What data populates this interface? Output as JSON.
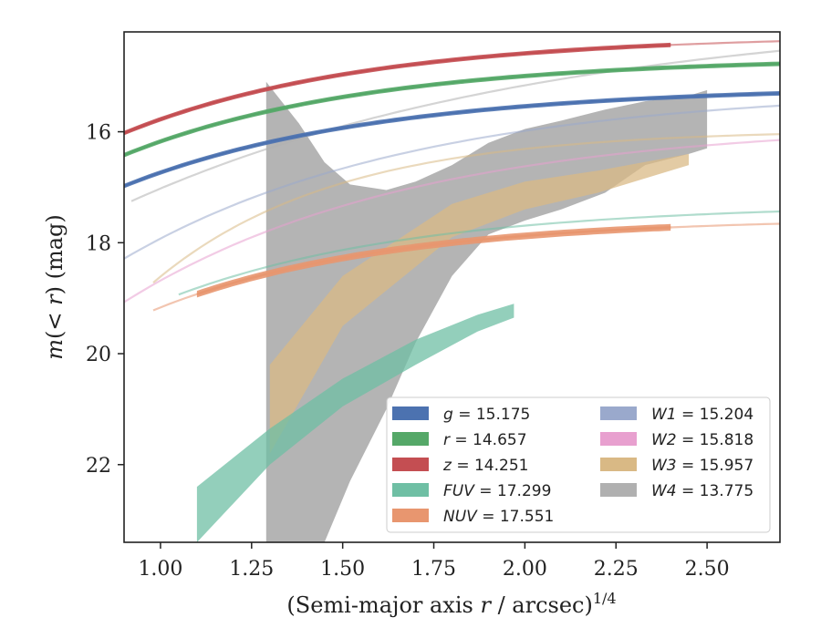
{
  "chart_data": {
    "type": "line",
    "xlabel": "(Semi-major axis r / arcsec)^1/4",
    "ylabel": "m(< r) (mag)",
    "xlim": [
      0.9,
      2.7
    ],
    "ylim": [
      23.4,
      14.2
    ],
    "y_inverted": true,
    "grid": false,
    "legend_position": "lower-right",
    "x_ticks": [
      "1.00",
      "1.25",
      "1.50",
      "1.75",
      "2.00",
      "2.25",
      "2.50"
    ],
    "x_tick_values": [
      1.0,
      1.25,
      1.5,
      1.75,
      2.0,
      2.25,
      2.5
    ],
    "y_ticks": [
      "16",
      "18",
      "20",
      "22"
    ],
    "y_tick_values": [
      16,
      18,
      20,
      22
    ],
    "series": [
      {
        "name": "g",
        "label": "g = 15.175",
        "color": "#4c72b0",
        "total": 15.175,
        "a": 6.65,
        "b": 1.45,
        "band": 0.04,
        "dmin": 0.9,
        "dmax": 2.7,
        "fit_min": 0.9,
        "fit_max": 2.7
      },
      {
        "name": "r",
        "label": "r = 14.657",
        "color": "#55a868",
        "total": 14.657,
        "a": 6.8,
        "b": 1.5,
        "band": 0.04,
        "dmin": 0.9,
        "dmax": 2.7,
        "fit_min": 0.9,
        "fit_max": 2.7
      },
      {
        "name": "z",
        "label": "z = 14.251",
        "color": "#c44e52",
        "total": 14.251,
        "a": 6.9,
        "b": 1.51,
        "band": 0.04,
        "dmin": 0.9,
        "dmax": 2.4,
        "fit_min": 0.9,
        "fit_max": 2.7
      },
      {
        "name": "FUV",
        "label": "FUV = 17.299",
        "color": "#6fbfa4",
        "total": 17.299,
        "a": 7.9,
        "b": 1.5,
        "band_x": [
          1.1,
          1.3,
          1.5,
          1.7,
          1.87,
          1.97
        ],
        "band_lo": [
          22.4,
          21.35,
          20.45,
          19.75,
          19.3,
          19.1
        ],
        "band_hi": [
          23.4,
          22.0,
          20.95,
          20.2,
          19.6,
          19.35
        ],
        "dmin": 1.1,
        "dmax": 1.97,
        "fit_min": 1.05,
        "fit_max": 2.7
      },
      {
        "name": "NUV",
        "label": "NUV = 17.551",
        "color": "#e8966f",
        "total": 17.551,
        "a": 8.0,
        "b": 1.6,
        "band": 0.06,
        "dmin": 1.1,
        "dmax": 2.4,
        "fit_min": 0.98,
        "fit_max": 2.7
      },
      {
        "name": "W1",
        "label": "W1 = 15.204",
        "color": "#9aa9cc",
        "total": 15.204,
        "a": 9.5,
        "b": 1.25,
        "dmin": 0.9,
        "dmax": 0.9,
        "fit_min": 0.9,
        "fit_max": 2.7
      },
      {
        "name": "W2",
        "label": "W2 = 15.818",
        "color": "#e8a0cf",
        "total": 15.818,
        "a": 10.2,
        "b": 1.27,
        "dmin": 0.9,
        "dmax": 0.9,
        "fit_min": 0.9,
        "fit_max": 2.7
      },
      {
        "name": "W3",
        "label": "W3 = 15.957",
        "color": "#d9b985",
        "total": 15.957,
        "a": 20.0,
        "b": 2.02,
        "band_x": [
          1.3,
          1.5,
          1.8,
          2.0,
          2.2,
          2.45
        ],
        "band_lo": [
          20.2,
          18.6,
          17.3,
          16.9,
          16.7,
          16.4
        ],
        "band_hi": [
          21.8,
          19.5,
          17.9,
          17.4,
          17.1,
          16.6
        ],
        "dmin": 1.3,
        "dmax": 2.45,
        "fit_min": 0.98,
        "fit_max": 2.7
      },
      {
        "name": "W4",
        "label": "W4 = 13.775",
        "color": "#b0b0b0",
        "total": 13.775,
        "a": 7.6,
        "b": 0.85,
        "band_x": [
          1.29,
          1.38,
          1.45,
          1.52,
          1.62,
          1.7,
          1.8,
          1.9,
          2.0,
          2.1,
          2.22,
          2.33,
          2.45,
          2.5
        ],
        "band_lo": [
          15.1,
          15.85,
          16.55,
          16.95,
          17.05,
          16.9,
          16.6,
          16.2,
          15.95,
          15.8,
          15.6,
          15.45,
          15.35,
          15.25
        ],
        "band_hi": [
          23.4,
          23.4,
          23.4,
          22.3,
          21.0,
          19.8,
          18.6,
          17.85,
          17.6,
          17.4,
          17.1,
          16.6,
          16.4,
          16.3
        ],
        "dmin": 1.29,
        "dmax": 2.5,
        "fit_min": 0.92,
        "fit_max": 2.7
      }
    ]
  },
  "legend": {
    "items": [
      {
        "label": "g = 15.175",
        "var": "g",
        "value": "15.175",
        "color": "#4c72b0"
      },
      {
        "label": "r = 14.657",
        "var": "r",
        "value": "14.657",
        "color": "#55a868"
      },
      {
        "label": "z = 14.251",
        "var": "z",
        "value": "14.251",
        "color": "#c44e52"
      },
      {
        "label": "FUV = 17.299",
        "var": "FUV",
        "value": "17.299",
        "color": "#6fbfa4"
      },
      {
        "label": "NUV = 17.551",
        "var": "NUV",
        "value": "17.551",
        "color": "#e8966f"
      },
      {
        "label": "W1 = 15.204",
        "var": "W1",
        "value": "15.204",
        "color": "#9aa9cc"
      },
      {
        "label": "W2 = 15.818",
        "var": "W2",
        "value": "15.818",
        "color": "#e8a0cf"
      },
      {
        "label": "W3 = 15.957",
        "var": "W3",
        "value": "15.957",
        "color": "#d9b985"
      },
      {
        "label": "W4 = 13.775",
        "var": "W4",
        "value": "13.775",
        "color": "#b0b0b0"
      }
    ]
  }
}
